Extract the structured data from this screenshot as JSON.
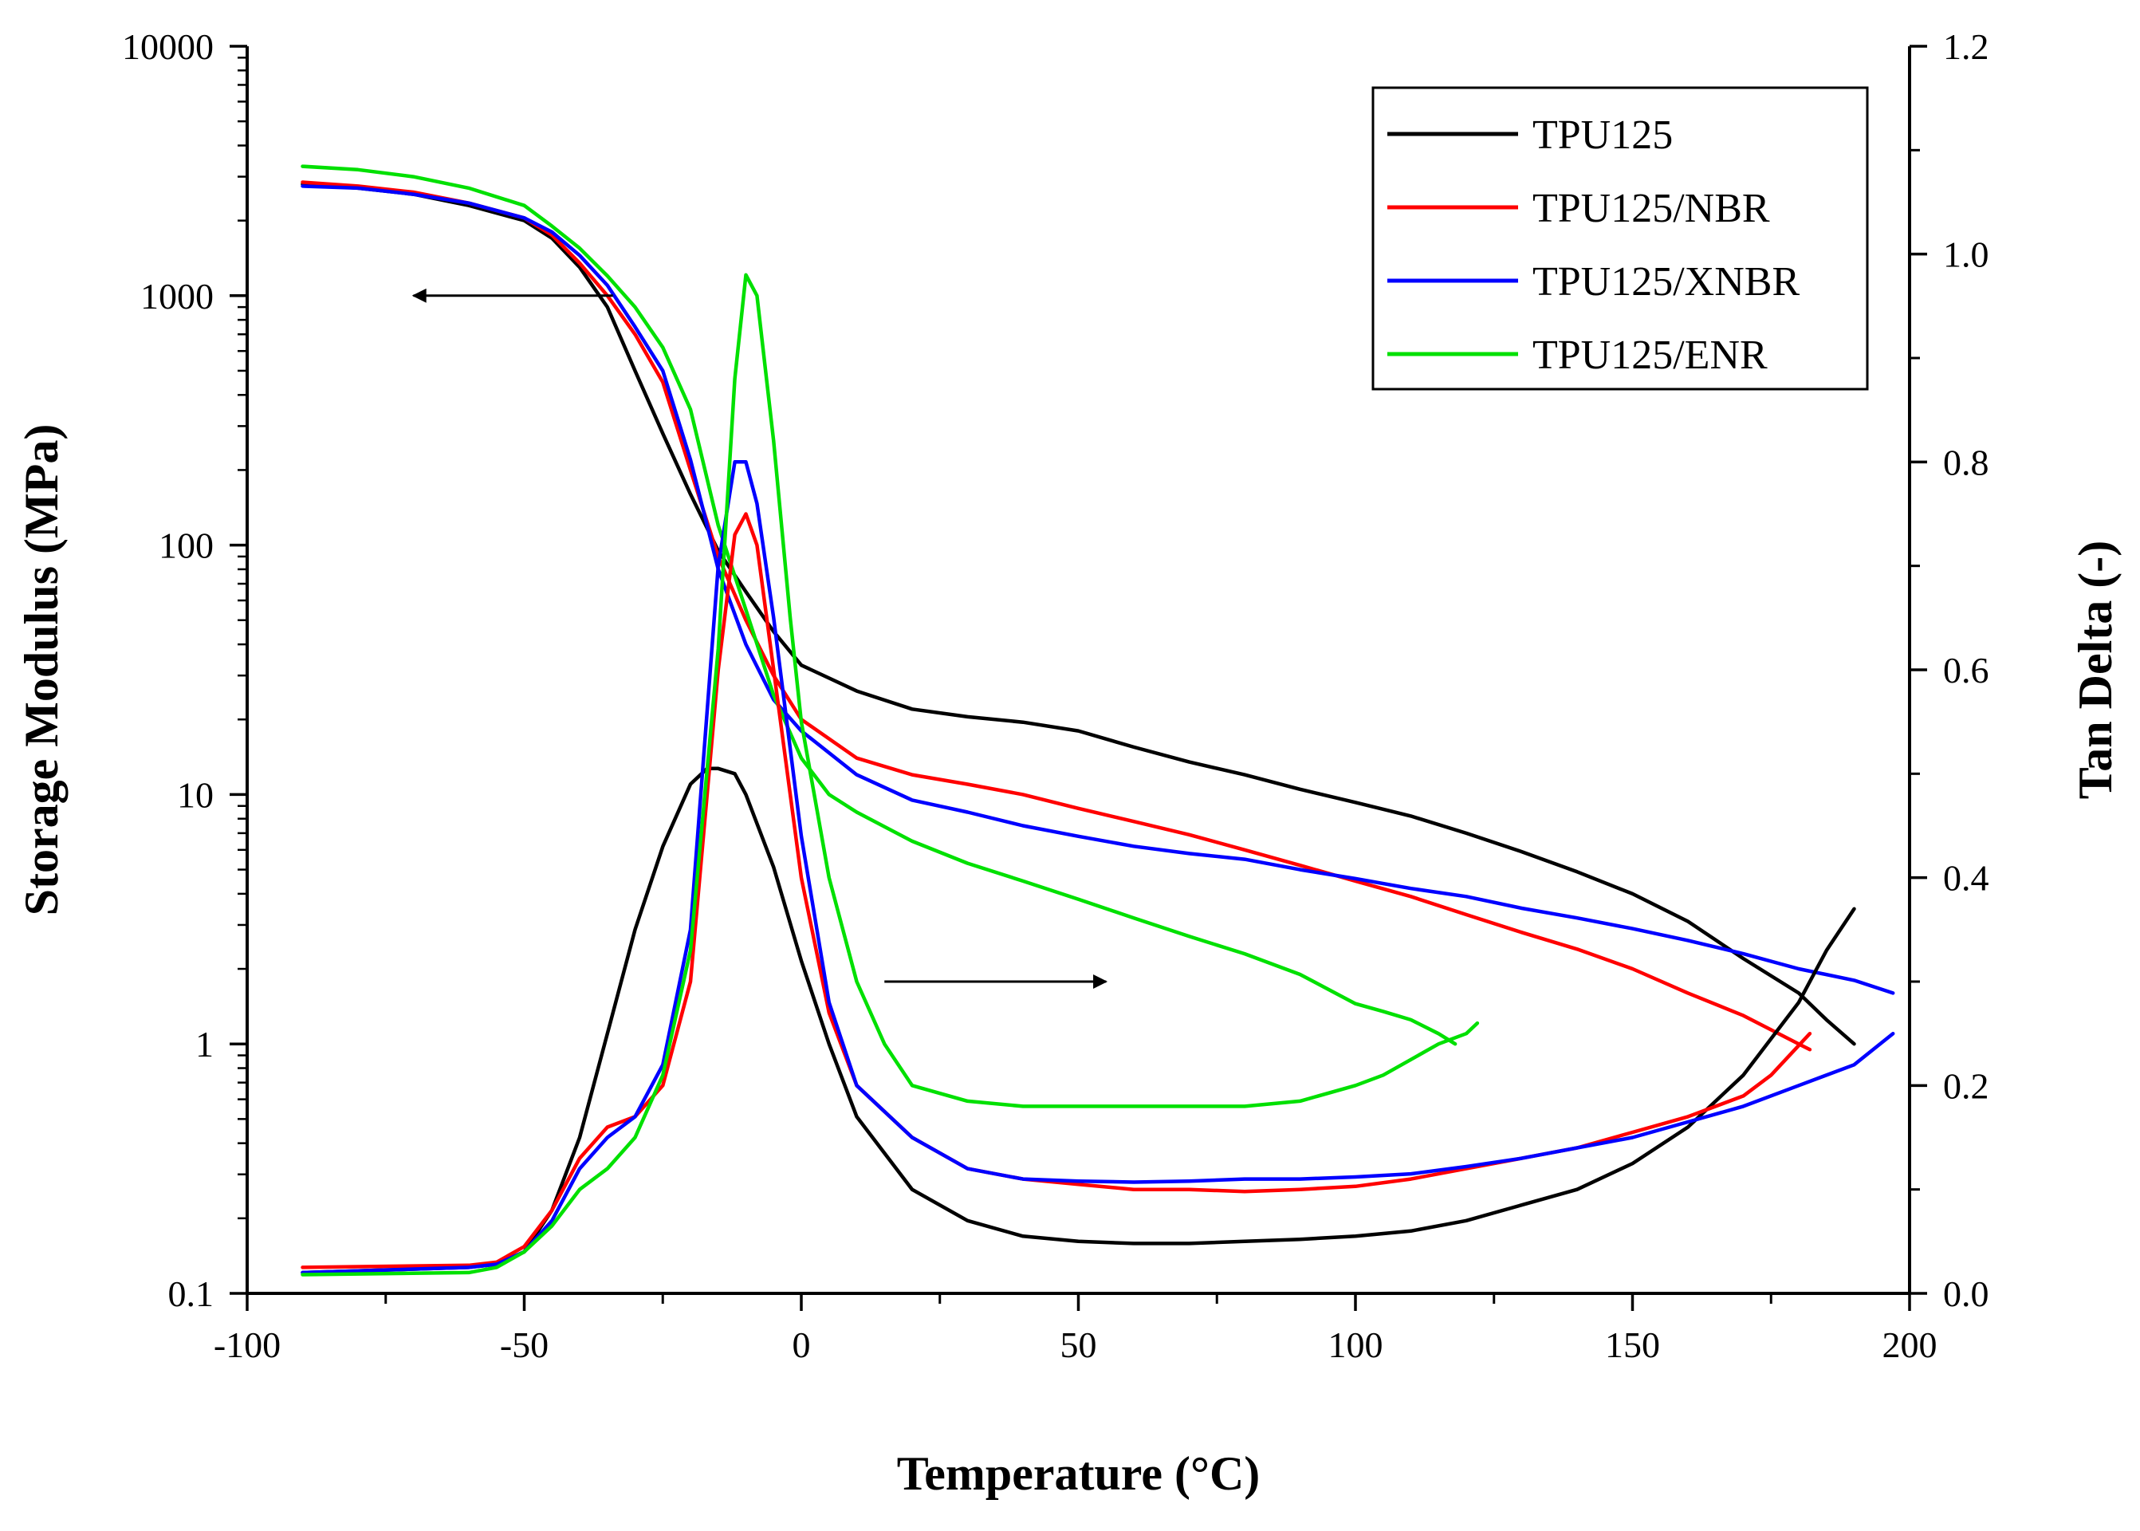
{
  "chart_data": {
    "type": "line",
    "title": "",
    "xlabel": "Temperature (°C)",
    "ylabel_left": "Storage Modulus (MPa)",
    "ylabel_right": "Tan Delta (-)",
    "xlim": [
      -100,
      200
    ],
    "ylim_left": [
      0.1,
      10000
    ],
    "yscale_left": "log",
    "ylim_right": [
      0.0,
      1.2
    ],
    "x_ticks": [
      "-100",
      "-50",
      "0",
      "50",
      "100",
      "150",
      "200"
    ],
    "y_left_ticks": [
      "0.1",
      "1",
      "10",
      "100",
      "1000",
      "10000"
    ],
    "y_right_ticks": [
      "0.0",
      "0.2",
      "0.4",
      "0.6",
      "0.8",
      "1.0",
      "1.2"
    ],
    "legend_position": "top-right",
    "colors": {
      "TPU125": "#000000",
      "TPU125/NBR": "#ff0000",
      "TPU125/XNBR": "#0000ff",
      "TPU125/ENR": "#00e000"
    },
    "annotations": [
      {
        "label": "arrow pointing to left axis (storage modulus curves)",
        "from": [
          -34,
          1000
        ],
        "to": [
          -70,
          1000
        ],
        "axis": "left"
      },
      {
        "label": "arrow pointing to right axis (tan delta curves)",
        "from": [
          15,
          0.3
        ],
        "to": [
          55,
          0.3
        ],
        "axis": "right"
      }
    ],
    "series": [
      {
        "name": "TPU125",
        "kind": "storage_modulus",
        "axis": "left",
        "x": [
          -90,
          -80,
          -70,
          -60,
          -50,
          -45,
          -40,
          -35,
          -30,
          -25,
          -20,
          -15,
          -10,
          -5,
          0,
          10,
          20,
          30,
          40,
          50,
          60,
          70,
          80,
          90,
          100,
          110,
          120,
          130,
          140,
          150,
          160,
          170,
          180,
          185,
          190
        ],
        "values": [
          2800,
          2700,
          2550,
          2300,
          2000,
          1700,
          1300,
          900,
          500,
          280,
          160,
          95,
          65,
          45,
          33,
          26,
          22,
          20.5,
          19.5,
          18,
          15.5,
          13.5,
          12,
          10.5,
          9.3,
          8.2,
          7,
          5.9,
          4.9,
          4,
          3.1,
          2.2,
          1.6,
          1.25,
          1.0
        ]
      },
      {
        "name": "TPU125/NBR",
        "kind": "storage_modulus",
        "axis": "left",
        "x": [
          -90,
          -80,
          -70,
          -60,
          -50,
          -45,
          -40,
          -35,
          -30,
          -25,
          -20,
          -15,
          -10,
          -5,
          0,
          10,
          20,
          30,
          40,
          50,
          60,
          70,
          80,
          90,
          100,
          110,
          120,
          130,
          140,
          150,
          160,
          170,
          180,
          182
        ],
        "values": [
          2850,
          2750,
          2600,
          2350,
          2050,
          1750,
          1350,
          1000,
          700,
          450,
          200,
          90,
          50,
          30,
          20,
          14,
          12,
          11,
          10,
          8.8,
          7.8,
          6.9,
          6.0,
          5.2,
          4.5,
          3.9,
          3.3,
          2.8,
          2.4,
          2.0,
          1.6,
          1.3,
          1.0,
          0.95
        ]
      },
      {
        "name": "TPU125/XNBR",
        "kind": "storage_modulus",
        "axis": "left",
        "x": [
          -90,
          -80,
          -70,
          -60,
          -50,
          -45,
          -40,
          -35,
          -30,
          -25,
          -20,
          -15,
          -10,
          -5,
          0,
          10,
          20,
          30,
          40,
          50,
          60,
          70,
          80,
          90,
          100,
          110,
          120,
          130,
          140,
          150,
          160,
          170,
          180,
          190,
          197
        ],
        "values": [
          2750,
          2700,
          2550,
          2350,
          2050,
          1800,
          1450,
          1100,
          750,
          500,
          220,
          80,
          40,
          24,
          18,
          12,
          9.5,
          8.5,
          7.5,
          6.8,
          6.2,
          5.8,
          5.5,
          5.0,
          4.6,
          4.2,
          3.9,
          3.5,
          3.2,
          2.9,
          2.6,
          2.3,
          2.0,
          1.8,
          1.6
        ]
      },
      {
        "name": "TPU125/ENR",
        "kind": "storage_modulus",
        "axis": "left",
        "x": [
          -90,
          -80,
          -70,
          -60,
          -50,
          -45,
          -40,
          -35,
          -30,
          -25,
          -20,
          -15,
          -10,
          -5,
          0,
          5,
          10,
          20,
          30,
          40,
          50,
          60,
          70,
          80,
          90,
          100,
          105,
          110,
          115,
          118
        ],
        "values": [
          3300,
          3200,
          3000,
          2700,
          2300,
          1900,
          1550,
          1200,
          900,
          620,
          350,
          120,
          55,
          25,
          14,
          10,
          8.5,
          6.5,
          5.3,
          4.5,
          3.8,
          3.2,
          2.7,
          2.3,
          1.9,
          1.45,
          1.35,
          1.25,
          1.1,
          1.0
        ]
      },
      {
        "name": "TPU125",
        "kind": "tan_delta",
        "axis": "right",
        "x": [
          -90,
          -60,
          -55,
          -50,
          -45,
          -40,
          -35,
          -30,
          -25,
          -20,
          -17,
          -15,
          -12,
          -10,
          -5,
          0,
          5,
          10,
          20,
          30,
          40,
          50,
          60,
          70,
          80,
          90,
          100,
          110,
          120,
          130,
          140,
          150,
          160,
          170,
          180,
          185,
          190
        ],
        "values": [
          0.02,
          0.025,
          0.028,
          0.04,
          0.08,
          0.15,
          0.25,
          0.35,
          0.43,
          0.49,
          0.505,
          0.505,
          0.5,
          0.48,
          0.41,
          0.32,
          0.24,
          0.17,
          0.1,
          0.07,
          0.055,
          0.05,
          0.048,
          0.048,
          0.05,
          0.052,
          0.055,
          0.06,
          0.07,
          0.085,
          0.1,
          0.125,
          0.16,
          0.21,
          0.28,
          0.33,
          0.37
        ]
      },
      {
        "name": "TPU125/NBR",
        "kind": "tan_delta",
        "axis": "right",
        "x": [
          -90,
          -60,
          -55,
          -50,
          -45,
          -40,
          -35,
          -30,
          -25,
          -20,
          -15,
          -12,
          -10,
          -8,
          -5,
          0,
          5,
          10,
          20,
          30,
          40,
          50,
          60,
          70,
          80,
          90,
          100,
          110,
          120,
          130,
          140,
          150,
          160,
          170,
          175,
          182
        ],
        "values": [
          0.025,
          0.027,
          0.03,
          0.045,
          0.08,
          0.13,
          0.16,
          0.17,
          0.2,
          0.3,
          0.6,
          0.73,
          0.75,
          0.72,
          0.6,
          0.4,
          0.27,
          0.2,
          0.15,
          0.12,
          0.11,
          0.105,
          0.1,
          0.1,
          0.098,
          0.1,
          0.103,
          0.11,
          0.12,
          0.13,
          0.14,
          0.155,
          0.17,
          0.19,
          0.21,
          0.25
        ]
      },
      {
        "name": "TPU125/XNBR",
        "kind": "tan_delta",
        "axis": "right",
        "x": [
          -90,
          -60,
          -55,
          -50,
          -45,
          -40,
          -35,
          -30,
          -25,
          -20,
          -15,
          -12,
          -10,
          -8,
          -5,
          0,
          5,
          10,
          20,
          30,
          40,
          50,
          60,
          70,
          80,
          90,
          100,
          110,
          120,
          130,
          140,
          150,
          160,
          170,
          180,
          190,
          197
        ],
        "values": [
          0.02,
          0.025,
          0.028,
          0.04,
          0.07,
          0.12,
          0.15,
          0.17,
          0.22,
          0.35,
          0.7,
          0.8,
          0.8,
          0.76,
          0.65,
          0.44,
          0.28,
          0.2,
          0.15,
          0.12,
          0.11,
          0.108,
          0.107,
          0.108,
          0.11,
          0.11,
          0.112,
          0.115,
          0.122,
          0.13,
          0.14,
          0.15,
          0.165,
          0.18,
          0.2,
          0.22,
          0.25
        ]
      },
      {
        "name": "TPU125/ENR",
        "kind": "tan_delta",
        "axis": "right",
        "x": [
          -90,
          -60,
          -55,
          -50,
          -45,
          -40,
          -35,
          -30,
          -25,
          -20,
          -15,
          -12,
          -10,
          -8,
          -5,
          -2,
          0,
          5,
          10,
          15,
          20,
          30,
          40,
          50,
          60,
          70,
          80,
          90,
          100,
          105,
          110,
          115,
          120,
          122
        ],
        "values": [
          0.018,
          0.02,
          0.025,
          0.04,
          0.065,
          0.1,
          0.12,
          0.15,
          0.21,
          0.33,
          0.62,
          0.88,
          0.98,
          0.96,
          0.82,
          0.65,
          0.55,
          0.4,
          0.3,
          0.24,
          0.2,
          0.185,
          0.18,
          0.18,
          0.18,
          0.18,
          0.18,
          0.185,
          0.2,
          0.21,
          0.225,
          0.24,
          0.25,
          0.26
        ]
      }
    ]
  }
}
